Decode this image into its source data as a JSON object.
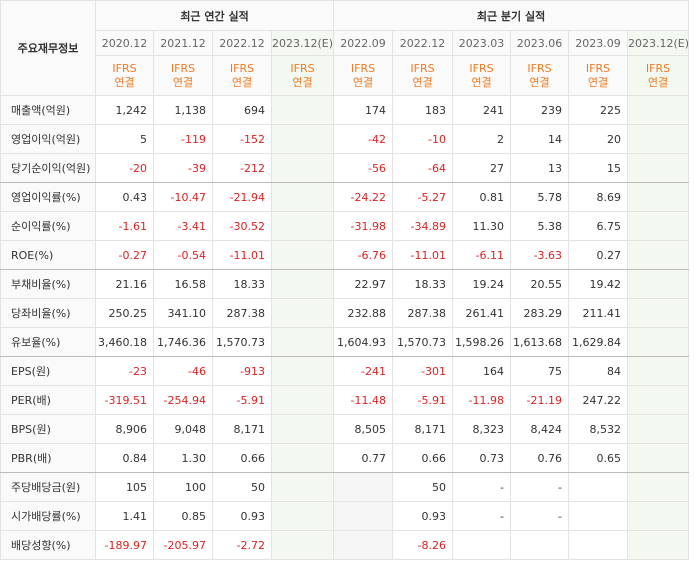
{
  "header": {
    "label_title": "주요재무정보",
    "annual_title": "최근 연간 실적",
    "quarterly_title": "최근 분기 실적",
    "columns": [
      {
        "period": "2020.12",
        "standard": "IFRS",
        "basis": "연결"
      },
      {
        "period": "2021.12",
        "standard": "IFRS",
        "basis": "연결"
      },
      {
        "period": "2022.12",
        "standard": "IFRS",
        "basis": "연결"
      },
      {
        "period": "2023.12(E)",
        "standard": "IFRS",
        "basis": "연결"
      },
      {
        "period": "2022.09",
        "standard": "IFRS",
        "basis": "연결"
      },
      {
        "period": "2022.12",
        "standard": "IFRS",
        "basis": "연결"
      },
      {
        "period": "2023.03",
        "standard": "IFRS",
        "basis": "연결"
      },
      {
        "period": "2023.06",
        "standard": "IFRS",
        "basis": "연결"
      },
      {
        "period": "2023.09",
        "standard": "IFRS",
        "basis": "연결"
      },
      {
        "period": "2023.12(E)",
        "standard": "IFRS",
        "basis": "연결"
      }
    ]
  },
  "table": {
    "rows": [
      {
        "label": "매출액(억원)",
        "cells": [
          "1,242",
          "1,138",
          "694",
          null,
          "174",
          "183",
          "241",
          "239",
          "225",
          null
        ]
      },
      {
        "label": "영업이익(억원)",
        "cells": [
          "5",
          "-119",
          "-152",
          null,
          "-42",
          "-10",
          "2",
          "14",
          "20",
          null
        ]
      },
      {
        "label": "당기순이익(억원)",
        "cells": [
          "-20",
          "-39",
          "-212",
          null,
          "-56",
          "-64",
          "27",
          "13",
          "15",
          null
        ]
      },
      {
        "label": "영업이익률(%)",
        "cells": [
          "0.43",
          "-10.47",
          "-21.94",
          null,
          "-24.22",
          "-5.27",
          "0.81",
          "5.78",
          "8.69",
          null
        ]
      },
      {
        "label": "순이익률(%)",
        "cells": [
          "-1.61",
          "-3.41",
          "-30.52",
          null,
          "-31.98",
          "-34.89",
          "11.30",
          "5.38",
          "6.75",
          null
        ]
      },
      {
        "label": "ROE(%)",
        "cells": [
          "-0.27",
          "-0.54",
          "-11.01",
          null,
          "-6.76",
          "-11.01",
          "-6.11",
          "-3.63",
          "0.27",
          null
        ]
      },
      {
        "label": "부채비율(%)",
        "cells": [
          "21.16",
          "16.58",
          "18.33",
          null,
          "22.97",
          "18.33",
          "19.24",
          "20.55",
          "19.42",
          null
        ]
      },
      {
        "label": "당좌비율(%)",
        "cells": [
          "250.25",
          "341.10",
          "287.38",
          null,
          "232.88",
          "287.38",
          "261.41",
          "283.29",
          "211.41",
          null
        ]
      },
      {
        "label": "유보율(%)",
        "cells": [
          "3,460.18",
          "1,746.36",
          "1,570.73",
          null,
          "1,604.93",
          "1,570.73",
          "1,598.26",
          "1,613.68",
          "1,629.84",
          null
        ]
      },
      {
        "label": "EPS(원)",
        "cells": [
          "-23",
          "-46",
          "-913",
          null,
          "-241",
          "-301",
          "164",
          "75",
          "84",
          null
        ]
      },
      {
        "label": "PER(배)",
        "cells": [
          "-319.51",
          "-254.94",
          "-5.91",
          null,
          "-11.48",
          "-5.91",
          "-11.98",
          "-21.19",
          "247.22",
          null
        ]
      },
      {
        "label": "BPS(원)",
        "cells": [
          "8,906",
          "9,048",
          "8,171",
          null,
          "8,505",
          "8,171",
          "8,323",
          "8,424",
          "8,532",
          null
        ]
      },
      {
        "label": "PBR(배)",
        "cells": [
          "0.84",
          "1.30",
          "0.66",
          null,
          "0.77",
          "0.66",
          "0.73",
          "0.76",
          "0.65",
          null
        ]
      },
      {
        "label": "주당배당금(원)",
        "cells": [
          "105",
          "100",
          "50",
          null,
          null,
          "50",
          "-",
          "-",
          null,
          null
        ]
      },
      {
        "label": "시가배당률(%)",
        "cells": [
          "1.41",
          "0.85",
          "0.93",
          null,
          null,
          "0.93",
          "-",
          "-",
          null,
          null
        ]
      },
      {
        "label": "배당성향(%)",
        "cells": [
          "-189.97",
          "-205.97",
          "-2.72",
          null,
          null,
          "-8.26",
          null,
          null,
          null,
          null
        ]
      }
    ]
  }
}
